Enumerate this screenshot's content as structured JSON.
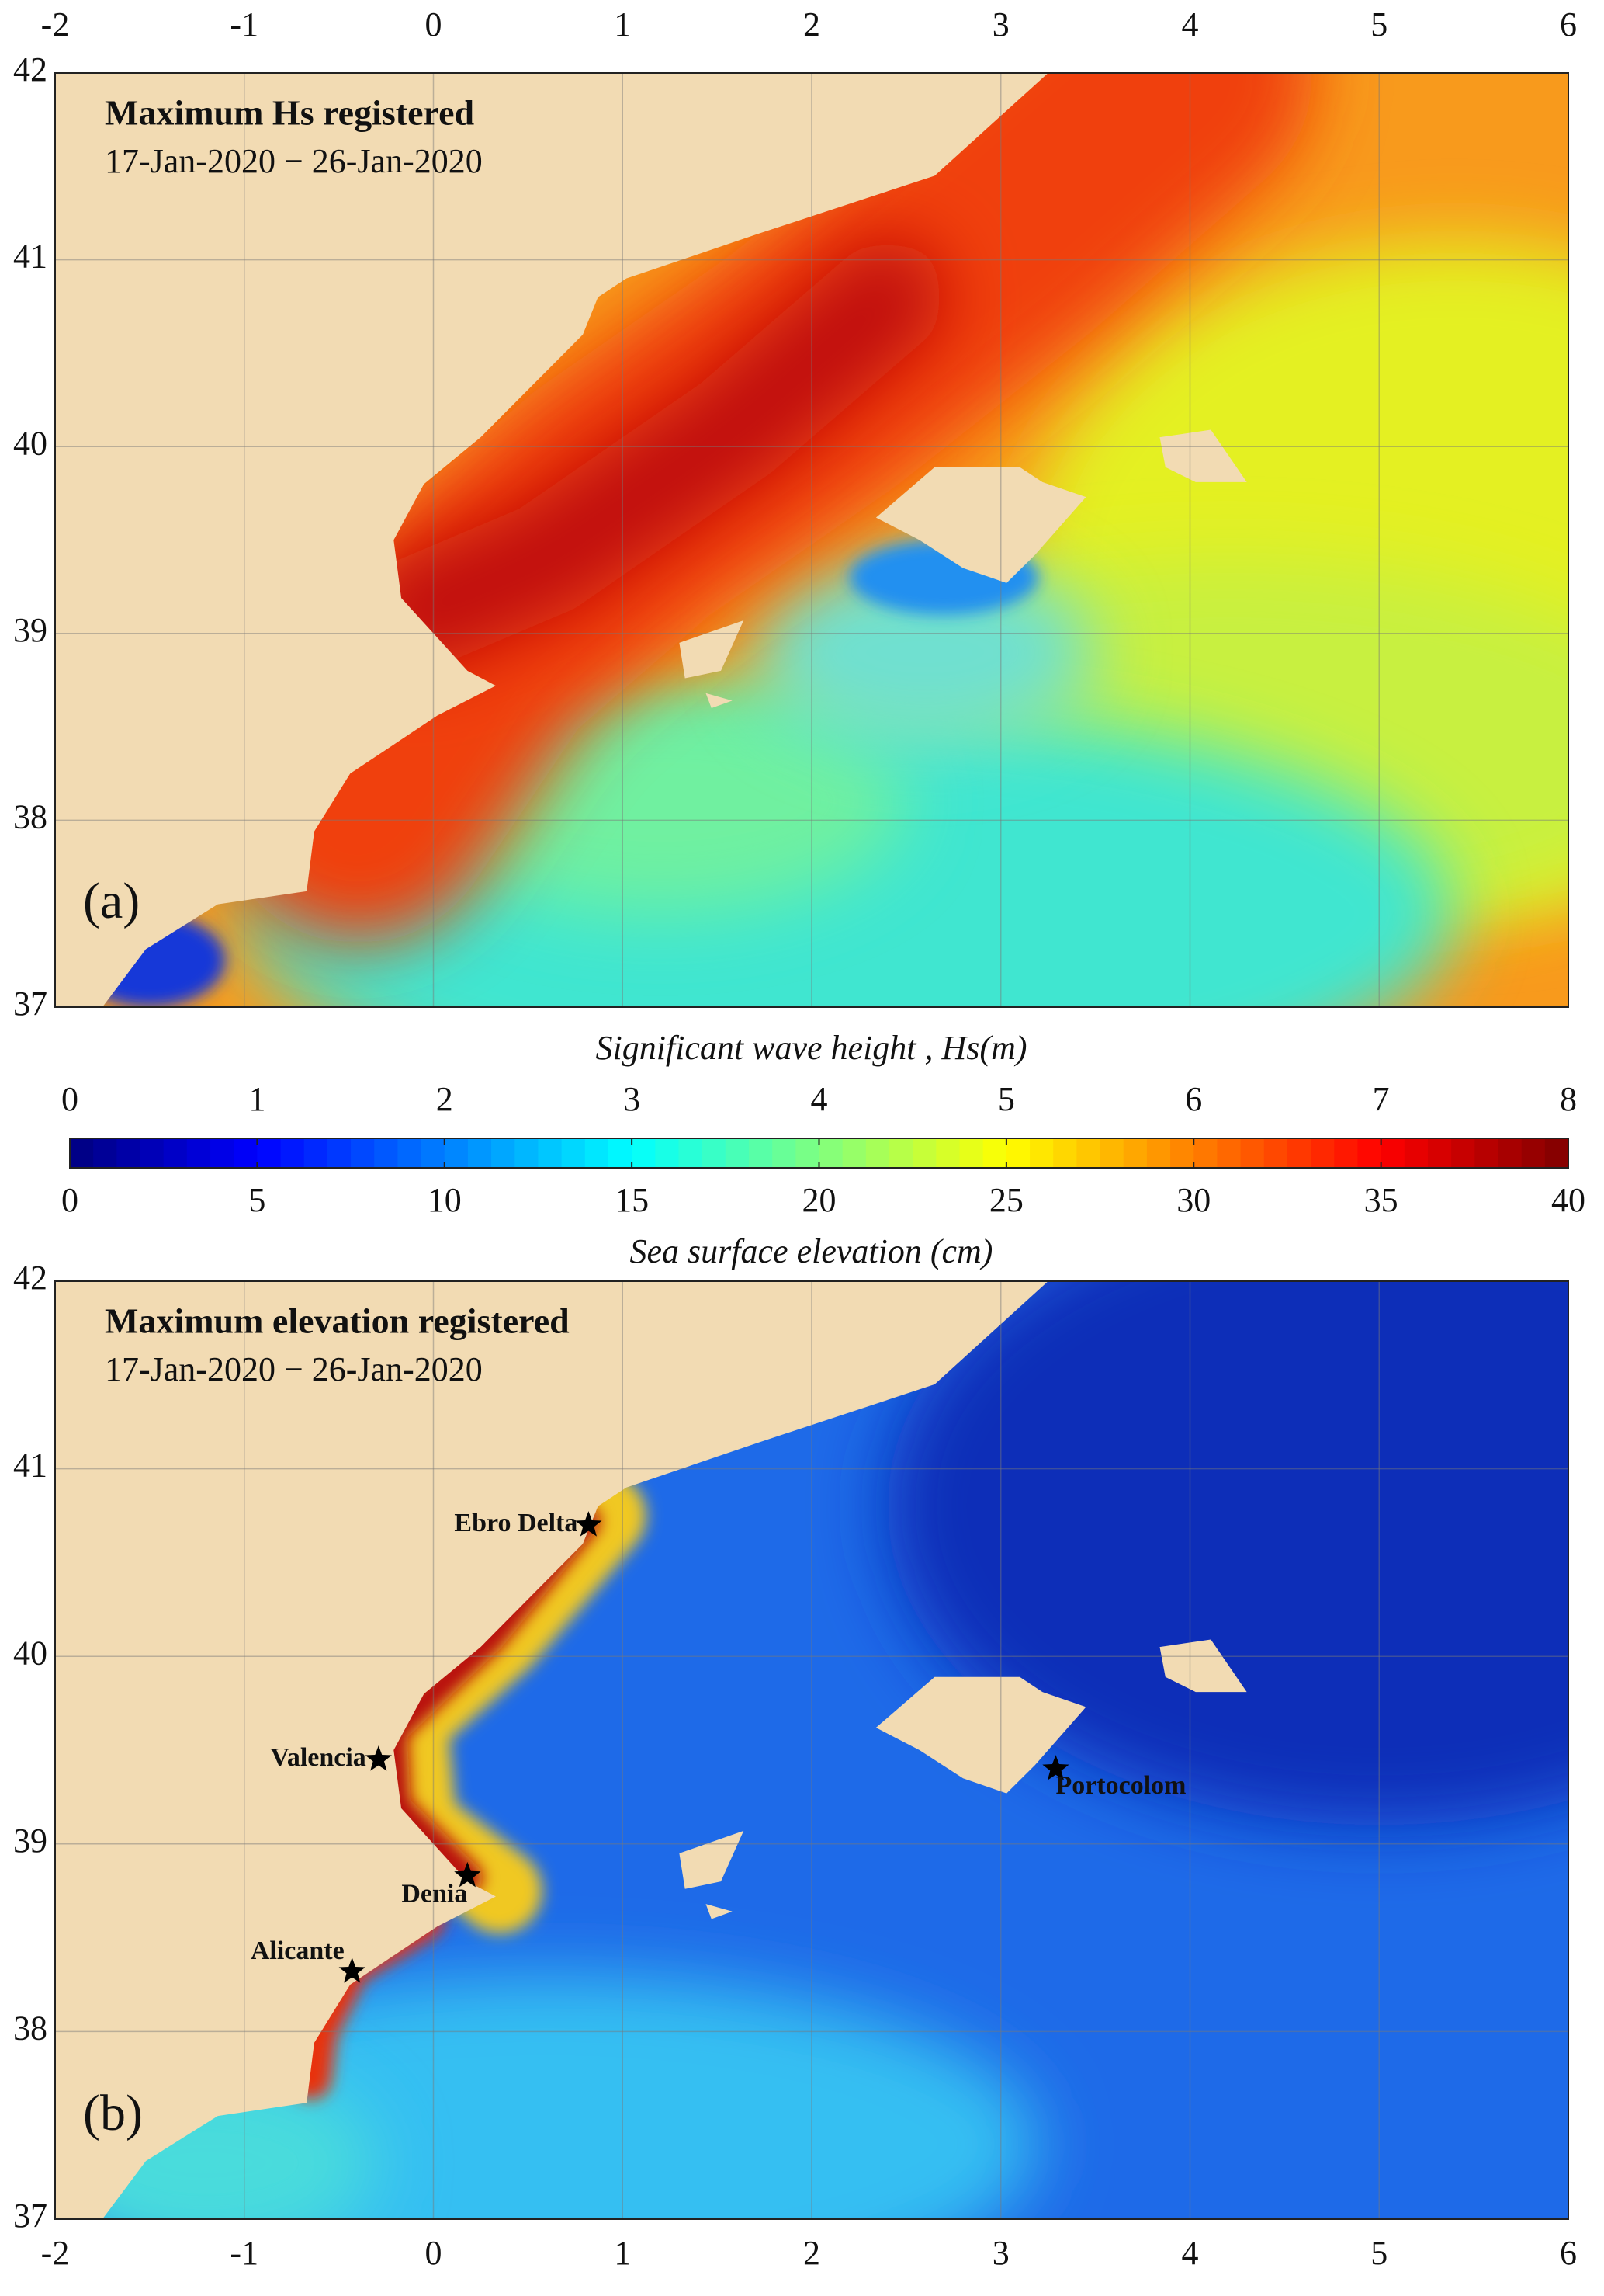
{
  "chart_data": [
    {
      "type": "map",
      "title": "Maximum Hs registered",
      "subtitle": "17-Jan-2020 − 26-Jan-2020",
      "panel_label": "(a)",
      "xlim": [
        -2,
        6
      ],
      "xticks": [
        -2,
        -1,
        0,
        1,
        2,
        3,
        4,
        5,
        6
      ],
      "ylim": [
        37,
        42
      ],
      "yticks": [
        37,
        38,
        39,
        40,
        41,
        42
      ],
      "xaxis_position": "top",
      "grid": true
    },
    {
      "type": "colorbar",
      "colormap": "jet",
      "xlabel": "Significant wave height , Hs(m)",
      "xlim": [
        0,
        8
      ],
      "xticks": [
        0,
        1,
        2,
        3,
        4,
        5,
        6,
        7,
        8
      ],
      "x2label": "Sea surface elevation (cm)",
      "x2lim": [
        0,
        40
      ],
      "x2ticks": [
        0,
        5,
        10,
        15,
        20,
        25,
        30,
        35,
        40
      ]
    },
    {
      "type": "map",
      "title": "Maximum elevation registered",
      "subtitle": "17-Jan-2020 − 26-Jan-2020",
      "panel_label": "(b)",
      "xlim": [
        -2,
        6
      ],
      "xticks": [
        -2,
        -1,
        0,
        1,
        2,
        3,
        4,
        5,
        6
      ],
      "ylim": [
        37,
        42
      ],
      "yticks": [
        37,
        38,
        39,
        40,
        41,
        42
      ],
      "xaxis_position": "bottom",
      "grid": true,
      "points": [
        {
          "name": "Ebro Delta",
          "x": 0.82,
          "y": 40.7
        },
        {
          "name": "Valencia",
          "x": -0.29,
          "y": 39.45
        },
        {
          "name": "Denia",
          "x": 0.18,
          "y": 38.83
        },
        {
          "name": "Alicante",
          "x": -0.43,
          "y": 38.32
        },
        {
          "name": "Portocolom",
          "x": 3.29,
          "y": 39.4
        }
      ]
    }
  ]
}
